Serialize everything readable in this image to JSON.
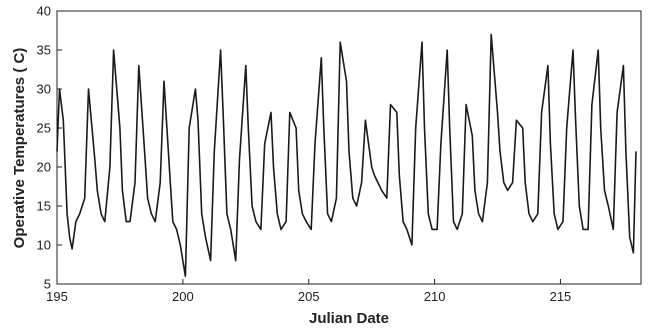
{
  "chart_data": {
    "type": "line",
    "title": "",
    "xlabel": "Julian Date",
    "ylabel": "Operative Temperatures ( C)",
    "xlim": [
      195,
      218.2
    ],
    "ylim": [
      5,
      40
    ],
    "x_ticks": [
      195,
      200,
      205,
      210,
      215
    ],
    "y_ticks": [
      5,
      10,
      15,
      20,
      25,
      30,
      35,
      40
    ],
    "grid": false,
    "legend": "none",
    "series_color": "#1a1a1a",
    "series": [
      {
        "x": [
          195.0,
          195.1,
          195.25,
          195.4,
          195.5,
          195.6,
          195.75,
          195.9,
          196.1,
          196.25,
          196.5,
          196.6,
          196.75,
          196.9,
          197.1,
          197.25,
          197.5,
          197.6,
          197.75,
          197.9,
          198.1,
          198.25,
          198.5,
          198.6,
          198.75,
          198.9,
          199.1,
          199.25,
          199.5,
          199.6,
          199.75,
          199.9,
          200.1,
          200.25,
          200.5,
          200.6,
          200.75,
          200.9,
          201.1,
          201.25,
          201.5,
          201.6,
          201.75,
          201.9,
          202.1,
          202.25,
          202.5,
          202.6,
          202.75,
          202.9,
          203.1,
          203.25,
          203.5,
          203.6,
          203.75,
          203.9,
          204.1,
          204.25,
          204.5,
          204.6,
          204.75,
          204.9,
          205.1,
          205.25,
          205.5,
          205.6,
          205.75,
          205.9,
          206.1,
          206.25,
          206.5,
          206.6,
          206.75,
          206.9,
          207.1,
          207.25,
          207.5,
          207.6,
          207.75,
          207.9,
          208.1,
          208.25,
          208.5,
          208.6,
          208.75,
          208.9,
          209.1,
          209.25,
          209.5,
          209.6,
          209.75,
          209.9,
          210.1,
          210.25,
          210.5,
          210.6,
          210.75,
          210.9,
          211.1,
          211.25,
          211.5,
          211.6,
          211.75,
          211.9,
          212.1,
          212.25,
          212.5,
          212.6,
          212.75,
          212.9,
          213.1,
          213.25,
          213.5,
          213.6,
          213.75,
          213.9,
          214.1,
          214.25,
          214.5,
          214.6,
          214.75,
          214.9,
          215.1,
          215.25,
          215.5,
          215.6,
          215.75,
          215.9,
          216.1,
          216.25,
          216.5,
          216.6,
          216.75,
          216.9,
          217.1,
          217.25,
          217.5,
          217.6,
          217.75,
          217.9,
          218.0
        ],
        "y": [
          22,
          30,
          26,
          14,
          11,
          9.5,
          13,
          14,
          16,
          30,
          21,
          17,
          14,
          13,
          20,
          35,
          25,
          17,
          13,
          13,
          18,
          33,
          21,
          16,
          14,
          13,
          18,
          31,
          18,
          13,
          12,
          10,
          6,
          25,
          30,
          26,
          14,
          11,
          8,
          22,
          35,
          27,
          14,
          12,
          8,
          21,
          33,
          25,
          15,
          13,
          12,
          23,
          27,
          20,
          14,
          12,
          13,
          27,
          25,
          17,
          14,
          13,
          12,
          23,
          34,
          25,
          14,
          13,
          16,
          36,
          31,
          22,
          16,
          15,
          18,
          26,
          20,
          19,
          18,
          17,
          16,
          28,
          27,
          19,
          13,
          12,
          10,
          25,
          36,
          25,
          14,
          12,
          12,
          23,
          35,
          25,
          13,
          12,
          14,
          28,
          24,
          17,
          14,
          13,
          18,
          37,
          27,
          22,
          18,
          17,
          18,
          26,
          25,
          18,
          14,
          13,
          14,
          27,
          33,
          23,
          14,
          12,
          13,
          25,
          35,
          26,
          15,
          12,
          12,
          28,
          35,
          25,
          17,
          15,
          12,
          27,
          33,
          22,
          11,
          9,
          22
        ]
      }
    ]
  }
}
